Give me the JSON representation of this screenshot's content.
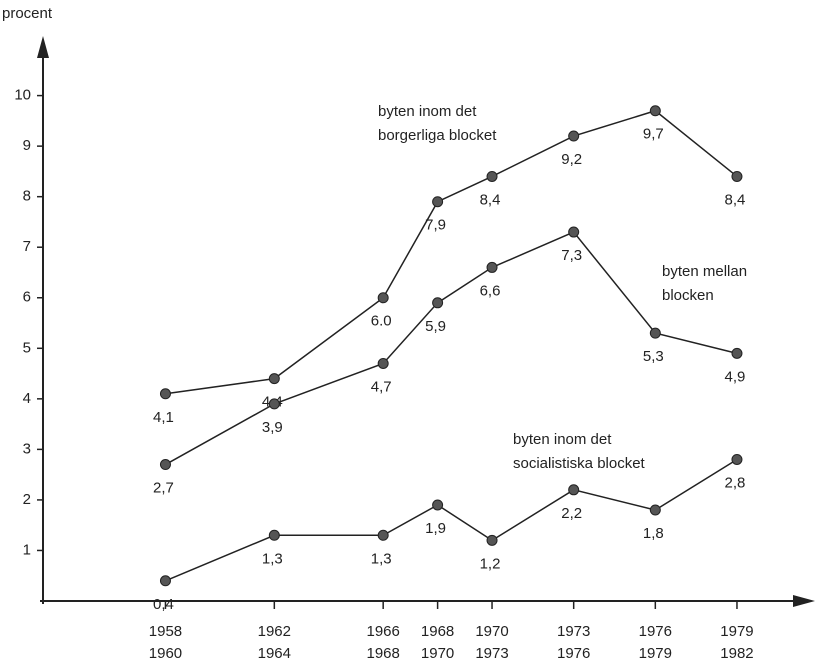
{
  "chart_data": {
    "type": "line",
    "y_label": "procent",
    "x": [
      1958,
      1962,
      1966,
      1968,
      1970,
      1973,
      1976,
      1979
    ],
    "xlim": [
      1953.5,
      1981.5
    ],
    "xticks": [
      {
        "value": 1958,
        "label": [
          "1958",
          "1960"
        ]
      },
      {
        "value": 1962,
        "label": [
          "1962",
          "1964"
        ]
      },
      {
        "value": 1966,
        "label": [
          "1966",
          "1968"
        ]
      },
      {
        "value": 1968,
        "label": [
          "1968",
          "1970"
        ]
      },
      {
        "value": 1970,
        "label": [
          "1970",
          "1973"
        ]
      },
      {
        "value": 1973,
        "label": [
          "1973",
          "1976"
        ]
      },
      {
        "value": 1976,
        "label": [
          "1976",
          "1979"
        ]
      },
      {
        "value": 1979,
        "label": [
          "1979",
          "1982"
        ]
      }
    ],
    "ylim": [
      0,
      11.1
    ],
    "yticks": [
      1,
      2,
      3,
      4,
      5,
      6,
      7,
      8,
      9,
      10
    ],
    "series": [
      {
        "name": [
          "byten inom det",
          "borgerliga blocket"
        ],
        "color": "#222222",
        "values": [
          4.1,
          4.4,
          6.0,
          7.9,
          8.4,
          9.2,
          9.7,
          8.4
        ],
        "value_labels": [
          "4,1",
          "4,4",
          "6.0",
          "7,9",
          "8,4",
          "9,2",
          "9,7",
          "8,4"
        ]
      },
      {
        "name": [
          "byten mellan",
          "blocken"
        ],
        "color": "#222222",
        "values": [
          2.7,
          3.9,
          4.7,
          5.9,
          6.6,
          7.3,
          5.3,
          4.9
        ],
        "value_labels": [
          "2,7",
          "3,9",
          "4,7",
          "5,9",
          "6,6",
          "7,3",
          "5,3",
          "4,9"
        ]
      },
      {
        "name": [
          "byten inom det",
          "socialistiska blocket"
        ],
        "color": "#222222",
        "values": [
          0.4,
          1.3,
          1.3,
          1.9,
          1.2,
          2.2,
          1.8,
          2.8
        ],
        "value_labels": [
          "0,4",
          "1,3",
          "1,3",
          "1,9",
          "1,2",
          "2,2",
          "1,8",
          "2,8"
        ]
      }
    ]
  }
}
